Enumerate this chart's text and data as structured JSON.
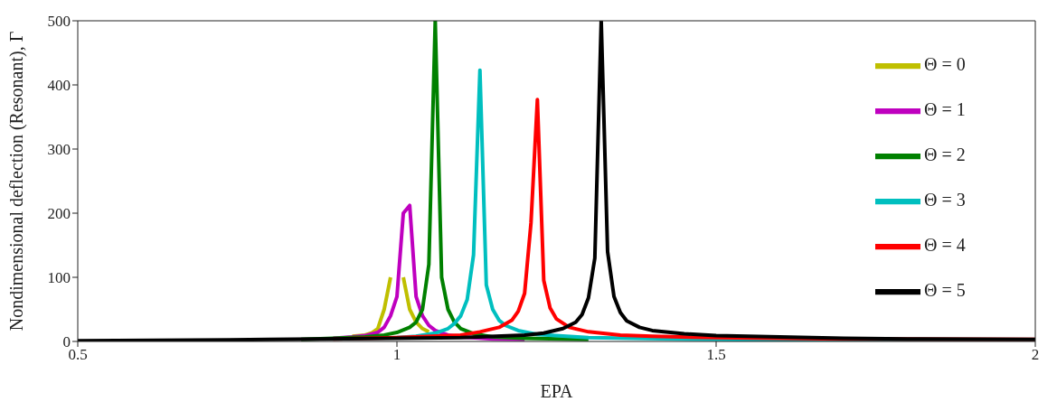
{
  "chart_data": {
    "type": "line",
    "xlabel": "EPA",
    "ylabel": "Nondimensional deflection (Resonant), Γ",
    "xlim": [
      0.5,
      2
    ],
    "ylim": [
      0,
      500
    ],
    "xticks": [
      0.5,
      1,
      1.5,
      2
    ],
    "yticks": [
      0,
      100,
      200,
      300,
      400,
      500
    ],
    "grid": false,
    "legend": "top right",
    "marker": "none",
    "line_style": "solid",
    "series": [
      {
        "name": "Θ = 0",
        "color": "#bfbf00",
        "x": [
          0.93,
          0.95,
          0.96,
          0.97,
          0.98,
          0.99,
          1.0,
          1.01,
          1.02,
          1.03,
          1.04,
          1.05
        ],
        "values": [
          8,
          10,
          13,
          20,
          50,
          100,
          null,
          100,
          50,
          30,
          20,
          15
        ]
      },
      {
        "name": "Θ = 1",
        "color": "#bf00bf",
        "x": [
          0.9,
          0.93,
          0.95,
          0.97,
          0.98,
          0.99,
          1.0,
          1.01,
          1.02,
          1.03,
          1.04,
          1.05,
          1.06,
          1.08,
          1.1,
          1.15,
          1.2
        ],
        "values": [
          5,
          7,
          9,
          14,
          22,
          40,
          70,
          200,
          212,
          70,
          40,
          25,
          17,
          10,
          7,
          4,
          3
        ]
      },
      {
        "name": "Θ = 2",
        "color": "#008000",
        "x": [
          0.85,
          0.9,
          0.95,
          0.98,
          1.0,
          1.02,
          1.03,
          1.04,
          1.05,
          1.06,
          1.07,
          1.08,
          1.09,
          1.1,
          1.12,
          1.15,
          1.2,
          1.3
        ],
        "values": [
          3,
          5,
          7,
          10,
          14,
          22,
          30,
          50,
          120,
          500,
          100,
          50,
          30,
          20,
          12,
          7,
          5,
          3
        ]
      },
      {
        "name": "Θ = 3",
        "color": "#00bfbf",
        "x": [
          1.0,
          1.03,
          1.06,
          1.08,
          1.09,
          1.1,
          1.11,
          1.12,
          1.13,
          1.14,
          1.15,
          1.16,
          1.17,
          1.19,
          1.22,
          1.3,
          1.5,
          1.7,
          2
        ],
        "values": [
          6,
          8,
          13,
          20,
          28,
          40,
          65,
          135,
          423,
          88,
          50,
          33,
          25,
          17,
          11,
          6,
          3,
          2,
          1
        ]
      },
      {
        "name": "Θ = 4",
        "color": "#ff0000",
        "x": [
          0.9,
          1.0,
          1.1,
          1.13,
          1.16,
          1.18,
          1.19,
          1.2,
          1.21,
          1.22,
          1.23,
          1.24,
          1.25,
          1.27,
          1.3,
          1.35,
          1.4,
          1.5,
          1.7,
          2
        ],
        "values": [
          4,
          6,
          10,
          15,
          22,
          33,
          47,
          75,
          185,
          377,
          95,
          52,
          35,
          22,
          15,
          10,
          8,
          6,
          4,
          3
        ]
      },
      {
        "name": "Θ = 5",
        "color": "#000000",
        "x": [
          0.5,
          0.8,
          1.0,
          1.1,
          1.2,
          1.23,
          1.26,
          1.28,
          1.29,
          1.3,
          1.31,
          1.32,
          1.33,
          1.34,
          1.35,
          1.36,
          1.38,
          1.4,
          1.45,
          1.5,
          1.6,
          1.7,
          1.8,
          2
        ],
        "values": [
          1,
          3,
          5,
          6,
          10,
          13,
          20,
          30,
          42,
          68,
          130,
          500,
          140,
          70,
          45,
          32,
          22,
          17,
          12,
          9,
          7,
          5,
          4,
          3
        ]
      }
    ]
  }
}
